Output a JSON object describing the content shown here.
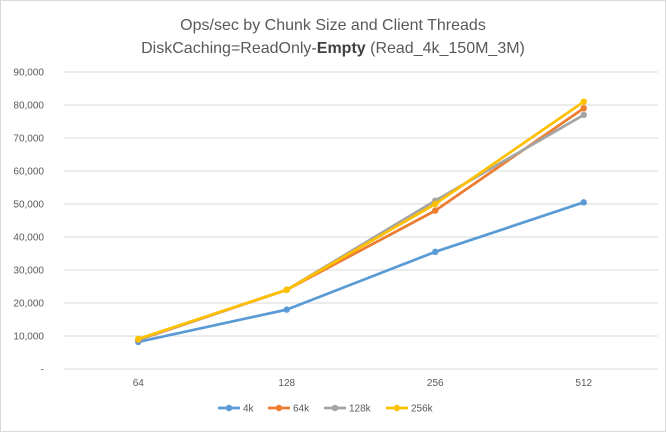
{
  "chart_data": {
    "type": "line",
    "title_line1": "Ops/sec by Chunk Size and Client Threads",
    "title_line2_prefix": "DiskCaching=ReadOnly-",
    "title_line2_bold": "Empty",
    "title_line2_suffix": " (Read_4k_150M_3M)",
    "categories": [
      "64",
      "128",
      "256",
      "512"
    ],
    "ylim": [
      0,
      90000
    ],
    "yticks": [
      {
        "value": 0,
        "label": "-"
      },
      {
        "value": 10000,
        "label": "10,000"
      },
      {
        "value": 20000,
        "label": "20,000"
      },
      {
        "value": 30000,
        "label": "30,000"
      },
      {
        "value": 40000,
        "label": "40,000"
      },
      {
        "value": 50000,
        "label": "50,000"
      },
      {
        "value": 60000,
        "label": "60,000"
      },
      {
        "value": 70000,
        "label": "70,000"
      },
      {
        "value": 80000,
        "label": "80,000"
      },
      {
        "value": 90000,
        "label": "90,000"
      }
    ],
    "grid": true,
    "legend_position": "bottom",
    "series": [
      {
        "name": "4k",
        "color": "#5B9BD5",
        "values": [
          8200,
          18000,
          35500,
          50500
        ]
      },
      {
        "name": "64k",
        "color": "#ED7D31",
        "values": [
          8800,
          24000,
          48000,
          79000
        ]
      },
      {
        "name": "128k",
        "color": "#A5A5A5",
        "values": [
          8900,
          24000,
          51000,
          77000
        ]
      },
      {
        "name": "256k",
        "color": "#FFC000",
        "values": [
          9100,
          24000,
          50000,
          81000
        ]
      }
    ]
  }
}
